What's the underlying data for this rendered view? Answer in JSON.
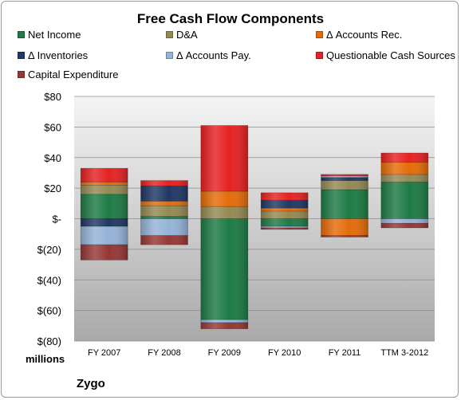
{
  "chart_data": {
    "type": "bar",
    "stacked": true,
    "title": "Free Cash Flow Components",
    "units_label": "millions",
    "company": "Zygo",
    "categories": [
      "FY 2007",
      "FY 2008",
      "FY 2009",
      "FY 2010",
      "FY 2011",
      "TTM 3-2012"
    ],
    "y_ticks": [
      "$80",
      "$60",
      "$40",
      "$20",
      "$-",
      "$(20)",
      "$(40)",
      "$(60)",
      "$(80)"
    ],
    "ylim": [
      -80,
      80
    ],
    "grid": true,
    "legend_position": "top",
    "series": [
      {
        "name": "Net Income",
        "color": "#1e7b45",
        "values": [
          16,
          1.5,
          -66,
          -5,
          19,
          24
        ]
      },
      {
        "name": "D&A",
        "color": "#948a54",
        "values": [
          6,
          7,
          8,
          5,
          6,
          5
        ]
      },
      {
        "name": "Δ Accounts Rec.",
        "color": "#e46c0a",
        "values": [
          2,
          3,
          10,
          2,
          -11,
          8
        ]
      },
      {
        "name": "Δ Inventories",
        "color": "#1f3864",
        "values": [
          -5,
          10,
          0,
          5,
          2,
          0
        ]
      },
      {
        "name": "Δ Accounts Pay.",
        "color": "#95b3d7",
        "values": [
          -12,
          -11,
          -2,
          -1,
          1,
          -3
        ]
      },
      {
        "name": "Questionable Cash Sources",
        "color": "#e52222",
        "values": [
          9,
          3.5,
          43,
          5,
          1,
          6
        ]
      },
      {
        "name": "Capital Expenditure",
        "color": "#953735",
        "values": [
          -10,
          -6,
          -4,
          -1,
          -1,
          -3
        ]
      }
    ]
  }
}
